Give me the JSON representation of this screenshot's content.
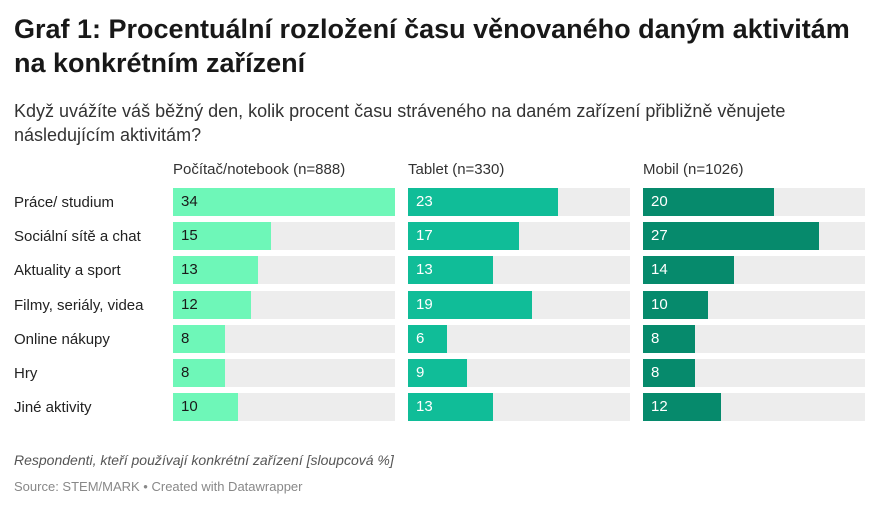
{
  "title": "Graf 1: Procentuální rozložení času věnovaného daným aktivitám na konkrétním zařízení",
  "subtitle": "Když uvážíte váš běžný den, kolik procent času stráveného na daném zařízení přibližně věnujete následujícím aktivitám?",
  "note": "Respondenti, kteří používají konkrétní zařízení [sloupcová %]",
  "source": "Source: STEM/MARK • Created with Datawrapper",
  "chart_data": {
    "type": "bar",
    "categories": [
      "Práce/ studium",
      "Sociální sítě a chat",
      "Aktuality a sport",
      "Filmy, seriály, videa",
      "Online nákupy",
      "Hry",
      "Jiné aktivity"
    ],
    "series": [
      {
        "name": "Počítač/notebook (n=888)",
        "values": [
          34,
          15,
          13,
          12,
          8,
          8,
          10
        ],
        "color": "#6ef7b8",
        "text_color": "#1a1a1a"
      },
      {
        "name": "Tablet (n=330)",
        "values": [
          23,
          17,
          13,
          19,
          6,
          9,
          13
        ],
        "color": "#10bd98",
        "text_color": "#ffffff"
      },
      {
        "name": "Mobil (n=1026)",
        "values": [
          20,
          27,
          14,
          10,
          8,
          8,
          12
        ],
        "color": "#068a6c",
        "text_color": "#ffffff"
      }
    ],
    "xlim": [
      0,
      34
    ],
    "track_color": "#ededed"
  }
}
